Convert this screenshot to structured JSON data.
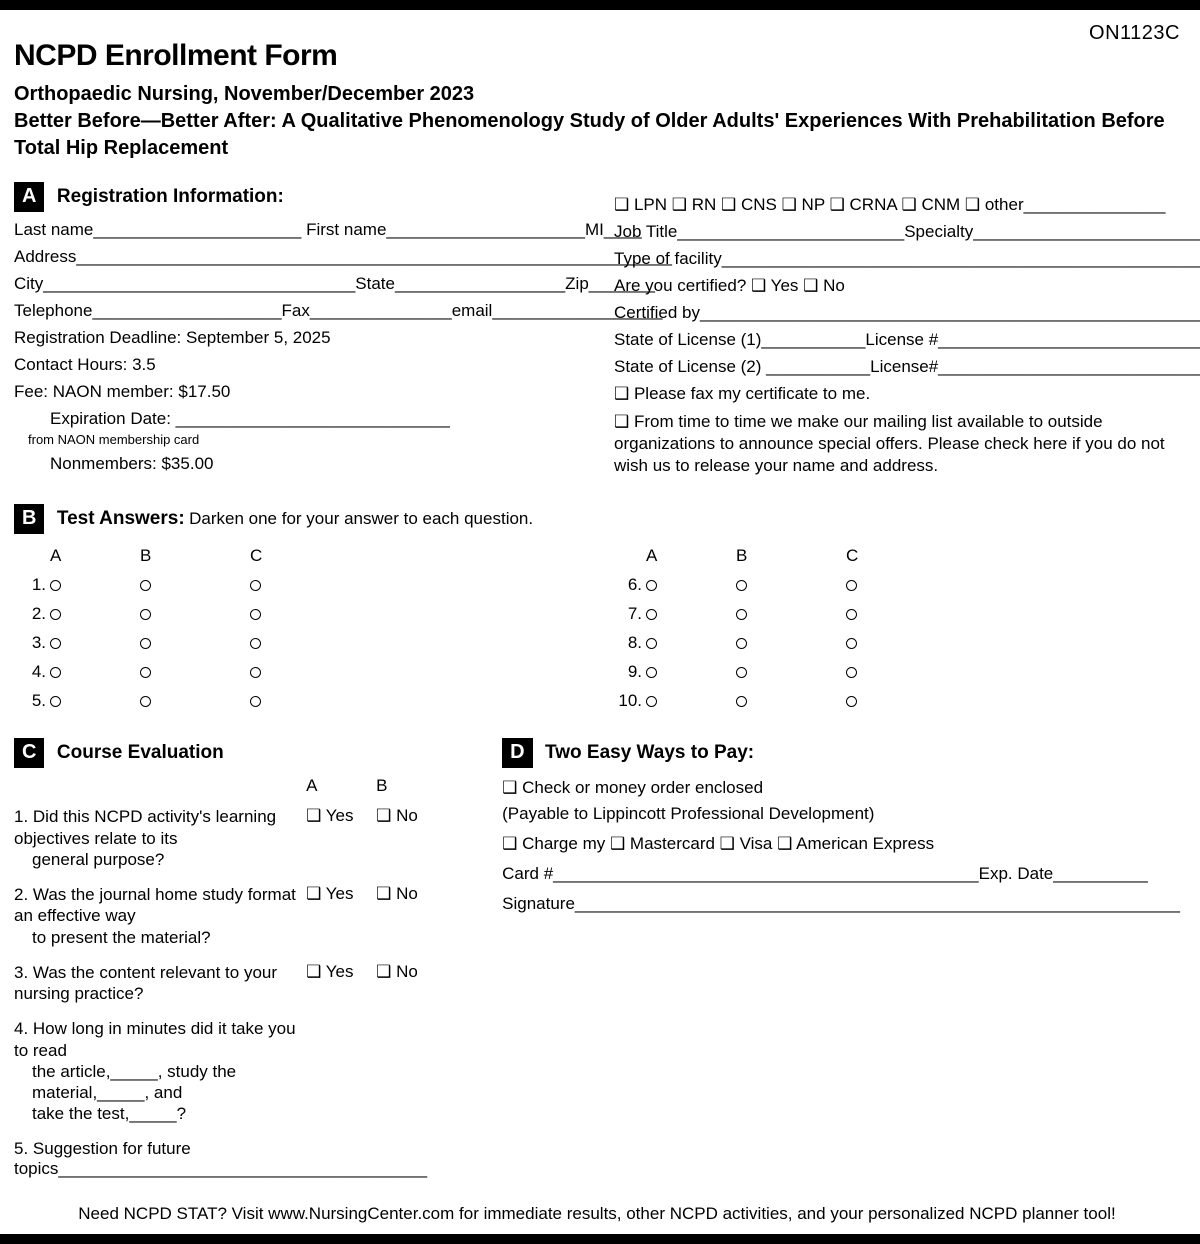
{
  "form_code": "ON1123C",
  "title": "NCPD Enrollment Form",
  "subtitle1": "Orthopaedic Nursing, November/December 2023",
  "subtitle2": "Better Before—Better After: A Qualitative Phenomenology Study of Older Adults' Experiences With Prehabilitation Before Total Hip Replacement",
  "sectA": {
    "label": "A",
    "title": "Registration Information:",
    "lastname": "Last name______________________ First name_____________________MI____",
    "address": "Address_______________________________________________________________",
    "city": "City_________________________________State__________________Zip_______",
    "phone": "Telephone____________________Fax_______________email__________________",
    "deadline": "Registration Deadline: September 5, 2025",
    "hours": "Contact Hours: 3.5",
    "fee": "Fee: NAON member: $17.50",
    "expdate": "Expiration Date: _____________________________",
    "expnote": "from NAON membership card",
    "nonmember": "Nonmembers: $35.00",
    "cred": "❑  LPN ❑  RN ❑  CNS ❑  NP ❑  CRNA ❑  CNM ❑  other_______________",
    "jobtitle": "Job Title________________________Specialty___________________________",
    "facility": "Type of facility____________________________________________________________",
    "certq": "Are you certified? ❑  Yes ❑  No",
    "certby": "Certified by________________________________________________________________",
    "lic1": "State of License (1)___________License #_______________________________",
    "lic2": "State of License (2) ___________License#_______________________________",
    "fax": "❑  Please fax my certificate to me.",
    "mailing": "❑  From time to time we make our mailing list available to outside organizations to announce special offers. Please check here if you do not wish us to release your name and address."
  },
  "sectB": {
    "label": "B",
    "title": "Test Answers:",
    "note": "Darken one for your answer to each question.",
    "colA": "A",
    "colB": "B",
    "colC": "C",
    "nums_left": [
      "1.",
      "2.",
      "3.",
      "4.",
      "5."
    ],
    "nums_right": [
      "6.",
      "7.",
      "8.",
      "9.",
      "10."
    ]
  },
  "sectC": {
    "label": "C",
    "title": "Course Evaluation",
    "colA": "A",
    "colB": "B",
    "q1a": "1. Did this NCPD activity's learning objectives relate to its",
    "q1b": "general purpose?",
    "q2a": "2. Was the journal home study format an effective way",
    "q2b": "to present the material?",
    "q3": "3. Was the content relevant to your nursing practice?",
    "q4a": "4. How long in minutes did it take you to read",
    "q4b": "the article,_____, study the material,_____, and",
    "q4c": "take the test,_____?",
    "q5": "5. Suggestion for future topics_______________________________________",
    "yes": "❑  Yes",
    "no": "❑  No"
  },
  "sectD": {
    "label": "D",
    "title": "Two Easy Ways to Pay:",
    "check": "❑  Check or money order enclosed",
    "payable": "(Payable to Lippincott Professional Development)",
    "charge": "❑  Charge my ❑  Mastercard ❑  Visa ❑  American Express",
    "card": "Card #_____________________________________________Exp. Date__________",
    "sig": "Signature________________________________________________________________"
  },
  "footer": "Need NCPD STAT? Visit www.NursingCenter.com for immediate results, other NCPD activities, and your personalized NCPD planner tool!"
}
